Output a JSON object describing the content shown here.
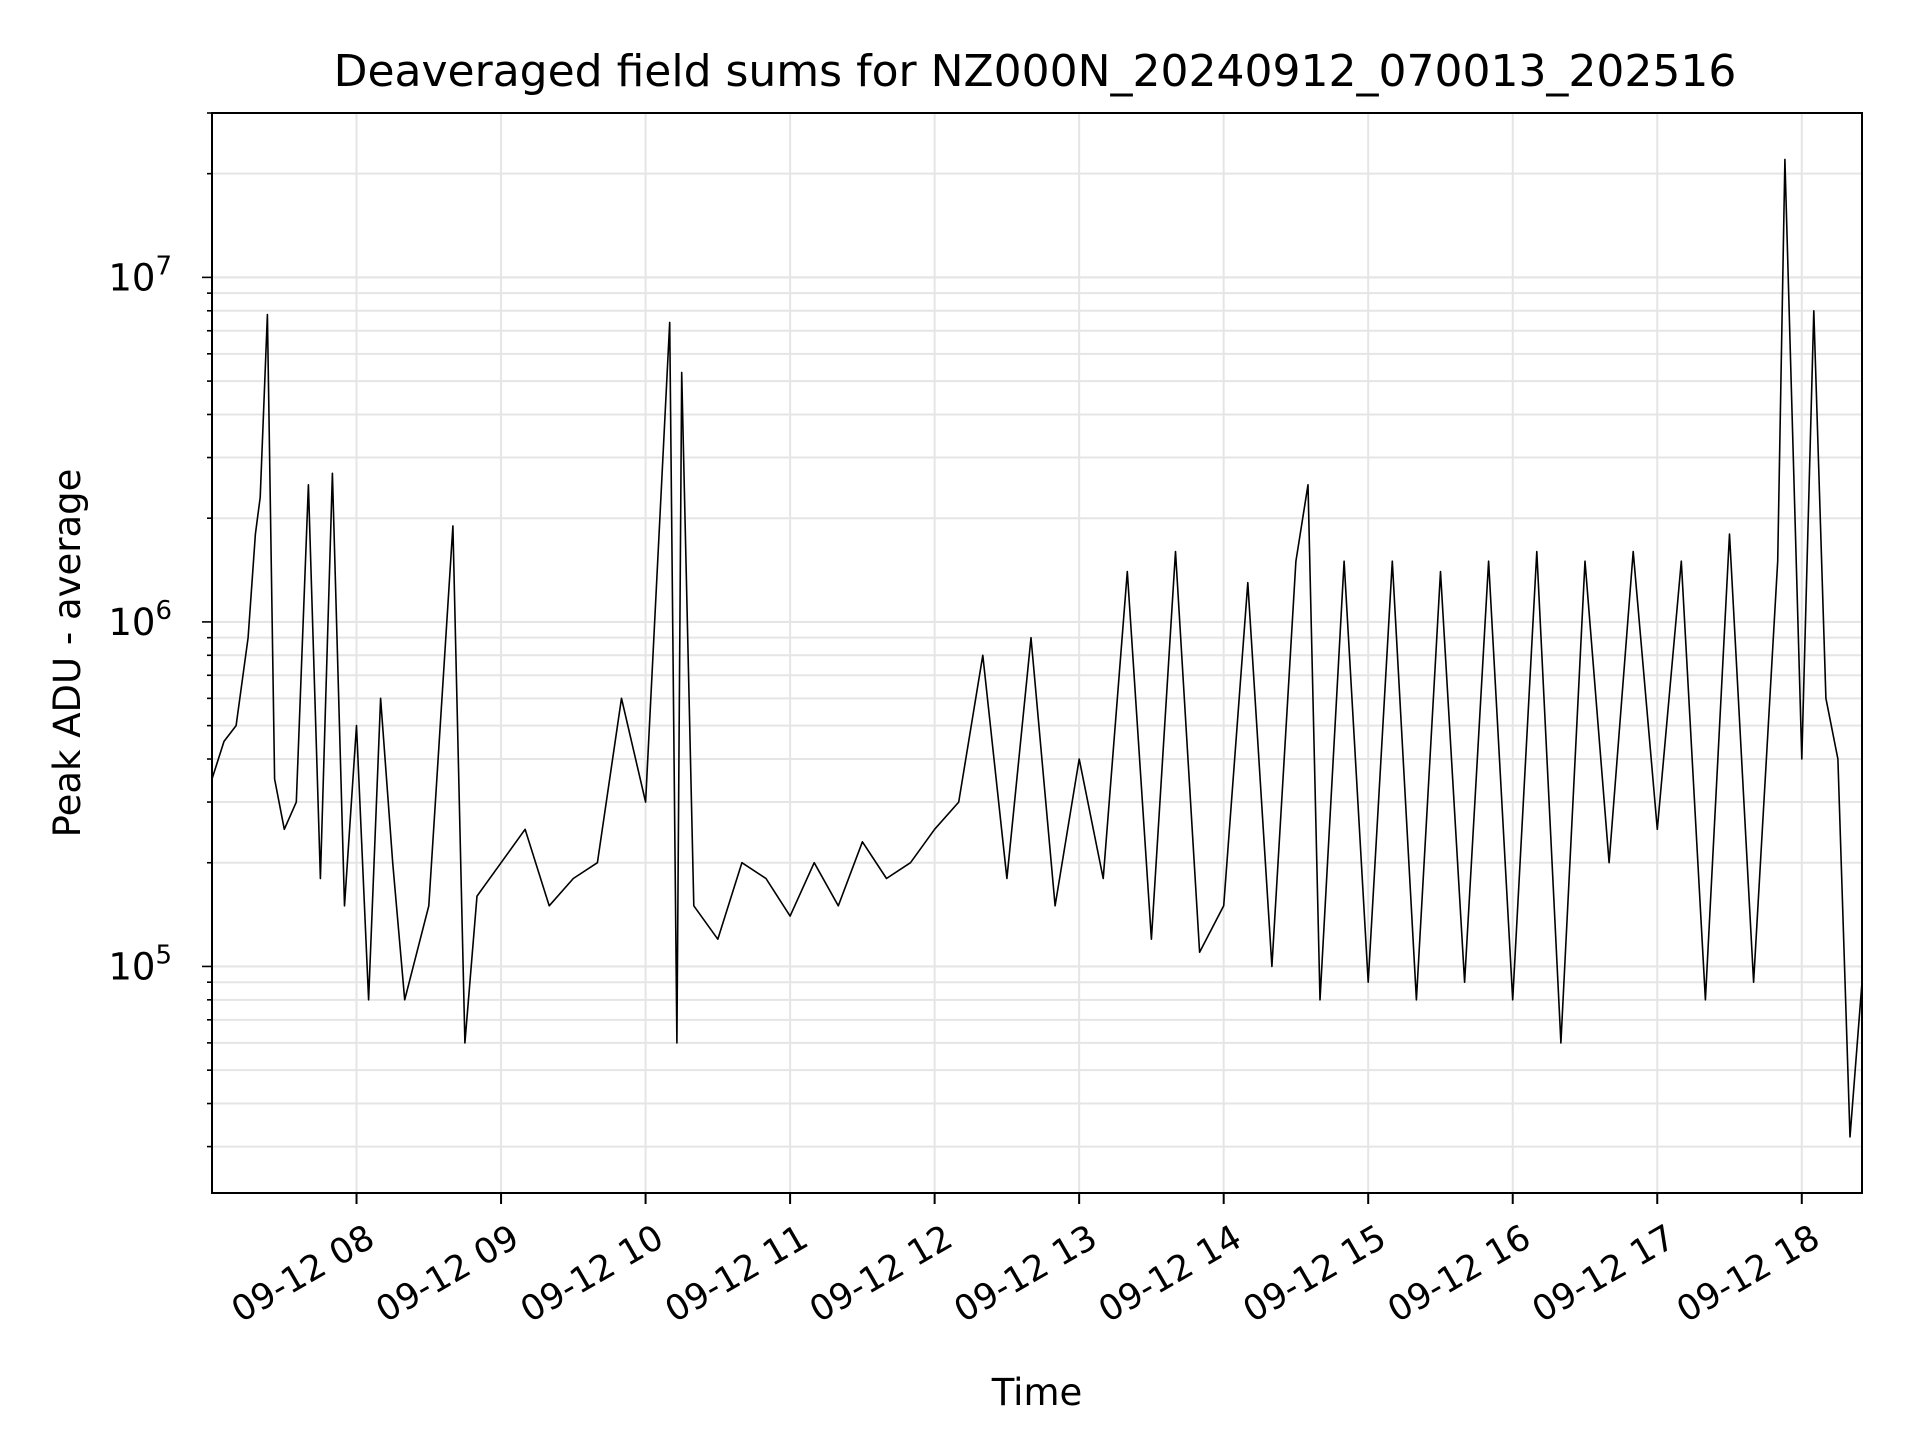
{
  "chart_data": {
    "type": "line",
    "title": "Deaveraged field sums for NZ000N_20240912_070013_202516",
    "xlabel": "Time",
    "ylabel": "Peak ADU - average",
    "yscale": "log",
    "ylim": [
      22000,
      30000000
    ],
    "xlim": [
      "2024-09-12 07:00",
      "2024-09-12 18:25"
    ],
    "grid": true,
    "line_color": "#000000",
    "grid_color": "#e5e5e5",
    "x_ticks": [
      "09-12 08",
      "09-12 09",
      "09-12 10",
      "09-12 11",
      "09-12 12",
      "09-12 13",
      "09-12 14",
      "09-12 15",
      "09-12 16",
      "09-12 17",
      "09-12 18"
    ],
    "y_ticks": [
      {
        "base": "10",
        "exp": "5",
        "value": 100000
      },
      {
        "base": "10",
        "exp": "6",
        "value": 1000000
      },
      {
        "base": "10",
        "exp": "7",
        "value": 10000000
      }
    ],
    "series": [
      {
        "x": [
          "2024-09-12 07:00",
          "2024-09-12 07:05",
          "2024-09-12 07:10",
          "2024-09-12 07:15",
          "2024-09-12 07:18",
          "2024-09-12 07:20",
          "2024-09-12 07:23",
          "2024-09-12 07:26",
          "2024-09-12 07:30",
          "2024-09-12 07:35",
          "2024-09-12 07:40",
          "2024-09-12 07:45",
          "2024-09-12 07:50",
          "2024-09-12 07:55",
          "2024-09-12 08:00",
          "2024-09-12 08:05",
          "2024-09-12 08:10",
          "2024-09-12 08:15",
          "2024-09-12 08:20",
          "2024-09-12 08:30",
          "2024-09-12 08:40",
          "2024-09-12 08:45",
          "2024-09-12 08:50",
          "2024-09-12 09:00",
          "2024-09-12 09:10",
          "2024-09-12 09:20",
          "2024-09-12 09:30",
          "2024-09-12 09:40",
          "2024-09-12 09:50",
          "2024-09-12 10:00",
          "2024-09-12 10:10",
          "2024-09-12 10:13",
          "2024-09-12 10:15",
          "2024-09-12 10:20",
          "2024-09-12 10:30",
          "2024-09-12 10:40",
          "2024-09-12 10:50",
          "2024-09-12 11:00",
          "2024-09-12 11:10",
          "2024-09-12 11:20",
          "2024-09-12 11:30",
          "2024-09-12 11:40",
          "2024-09-12 11:50",
          "2024-09-12 12:00",
          "2024-09-12 12:10",
          "2024-09-12 12:20",
          "2024-09-12 12:30",
          "2024-09-12 12:40",
          "2024-09-12 12:50",
          "2024-09-12 13:00",
          "2024-09-12 13:10",
          "2024-09-12 13:20",
          "2024-09-12 13:30",
          "2024-09-12 13:40",
          "2024-09-12 13:50",
          "2024-09-12 14:00",
          "2024-09-12 14:10",
          "2024-09-12 14:20",
          "2024-09-12 14:30",
          "2024-09-12 14:35",
          "2024-09-12 14:40",
          "2024-09-12 14:50",
          "2024-09-12 15:00",
          "2024-09-12 15:10",
          "2024-09-12 15:20",
          "2024-09-12 15:30",
          "2024-09-12 15:40",
          "2024-09-12 15:50",
          "2024-09-12 16:00",
          "2024-09-12 16:10",
          "2024-09-12 16:20",
          "2024-09-12 16:30",
          "2024-09-12 16:40",
          "2024-09-12 16:50",
          "2024-09-12 17:00",
          "2024-09-12 17:10",
          "2024-09-12 17:20",
          "2024-09-12 17:30",
          "2024-09-12 17:40",
          "2024-09-12 17:50",
          "2024-09-12 17:53",
          "2024-09-12 18:00",
          "2024-09-12 18:05",
          "2024-09-12 18:10",
          "2024-09-12 18:15",
          "2024-09-12 18:20",
          "2024-09-12 18:25"
        ],
        "y": [
          350000,
          450000,
          500000,
          900000,
          1800000,
          2300000,
          7800000,
          350000,
          250000,
          300000,
          2500000,
          180000,
          2700000,
          150000,
          500000,
          80000,
          600000,
          200000,
          80000,
          150000,
          1900000,
          60000,
          160000,
          200000,
          250000,
          150000,
          180000,
          200000,
          600000,
          300000,
          7400000,
          60000,
          5300000,
          150000,
          120000,
          200000,
          180000,
          140000,
          200000,
          150000,
          230000,
          180000,
          200000,
          250000,
          300000,
          800000,
          180000,
          900000,
          150000,
          400000,
          180000,
          1400000,
          120000,
          1600000,
          110000,
          150000,
          1300000,
          100000,
          1500000,
          2500000,
          80000,
          1500000,
          90000,
          1500000,
          80000,
          1400000,
          90000,
          1500000,
          80000,
          1600000,
          60000,
          1500000,
          200000,
          1600000,
          250000,
          1500000,
          80000,
          1800000,
          90000,
          1500000,
          22000000,
          400000,
          8000000,
          600000,
          400000,
          32000,
          90000
        ]
      }
    ]
  }
}
